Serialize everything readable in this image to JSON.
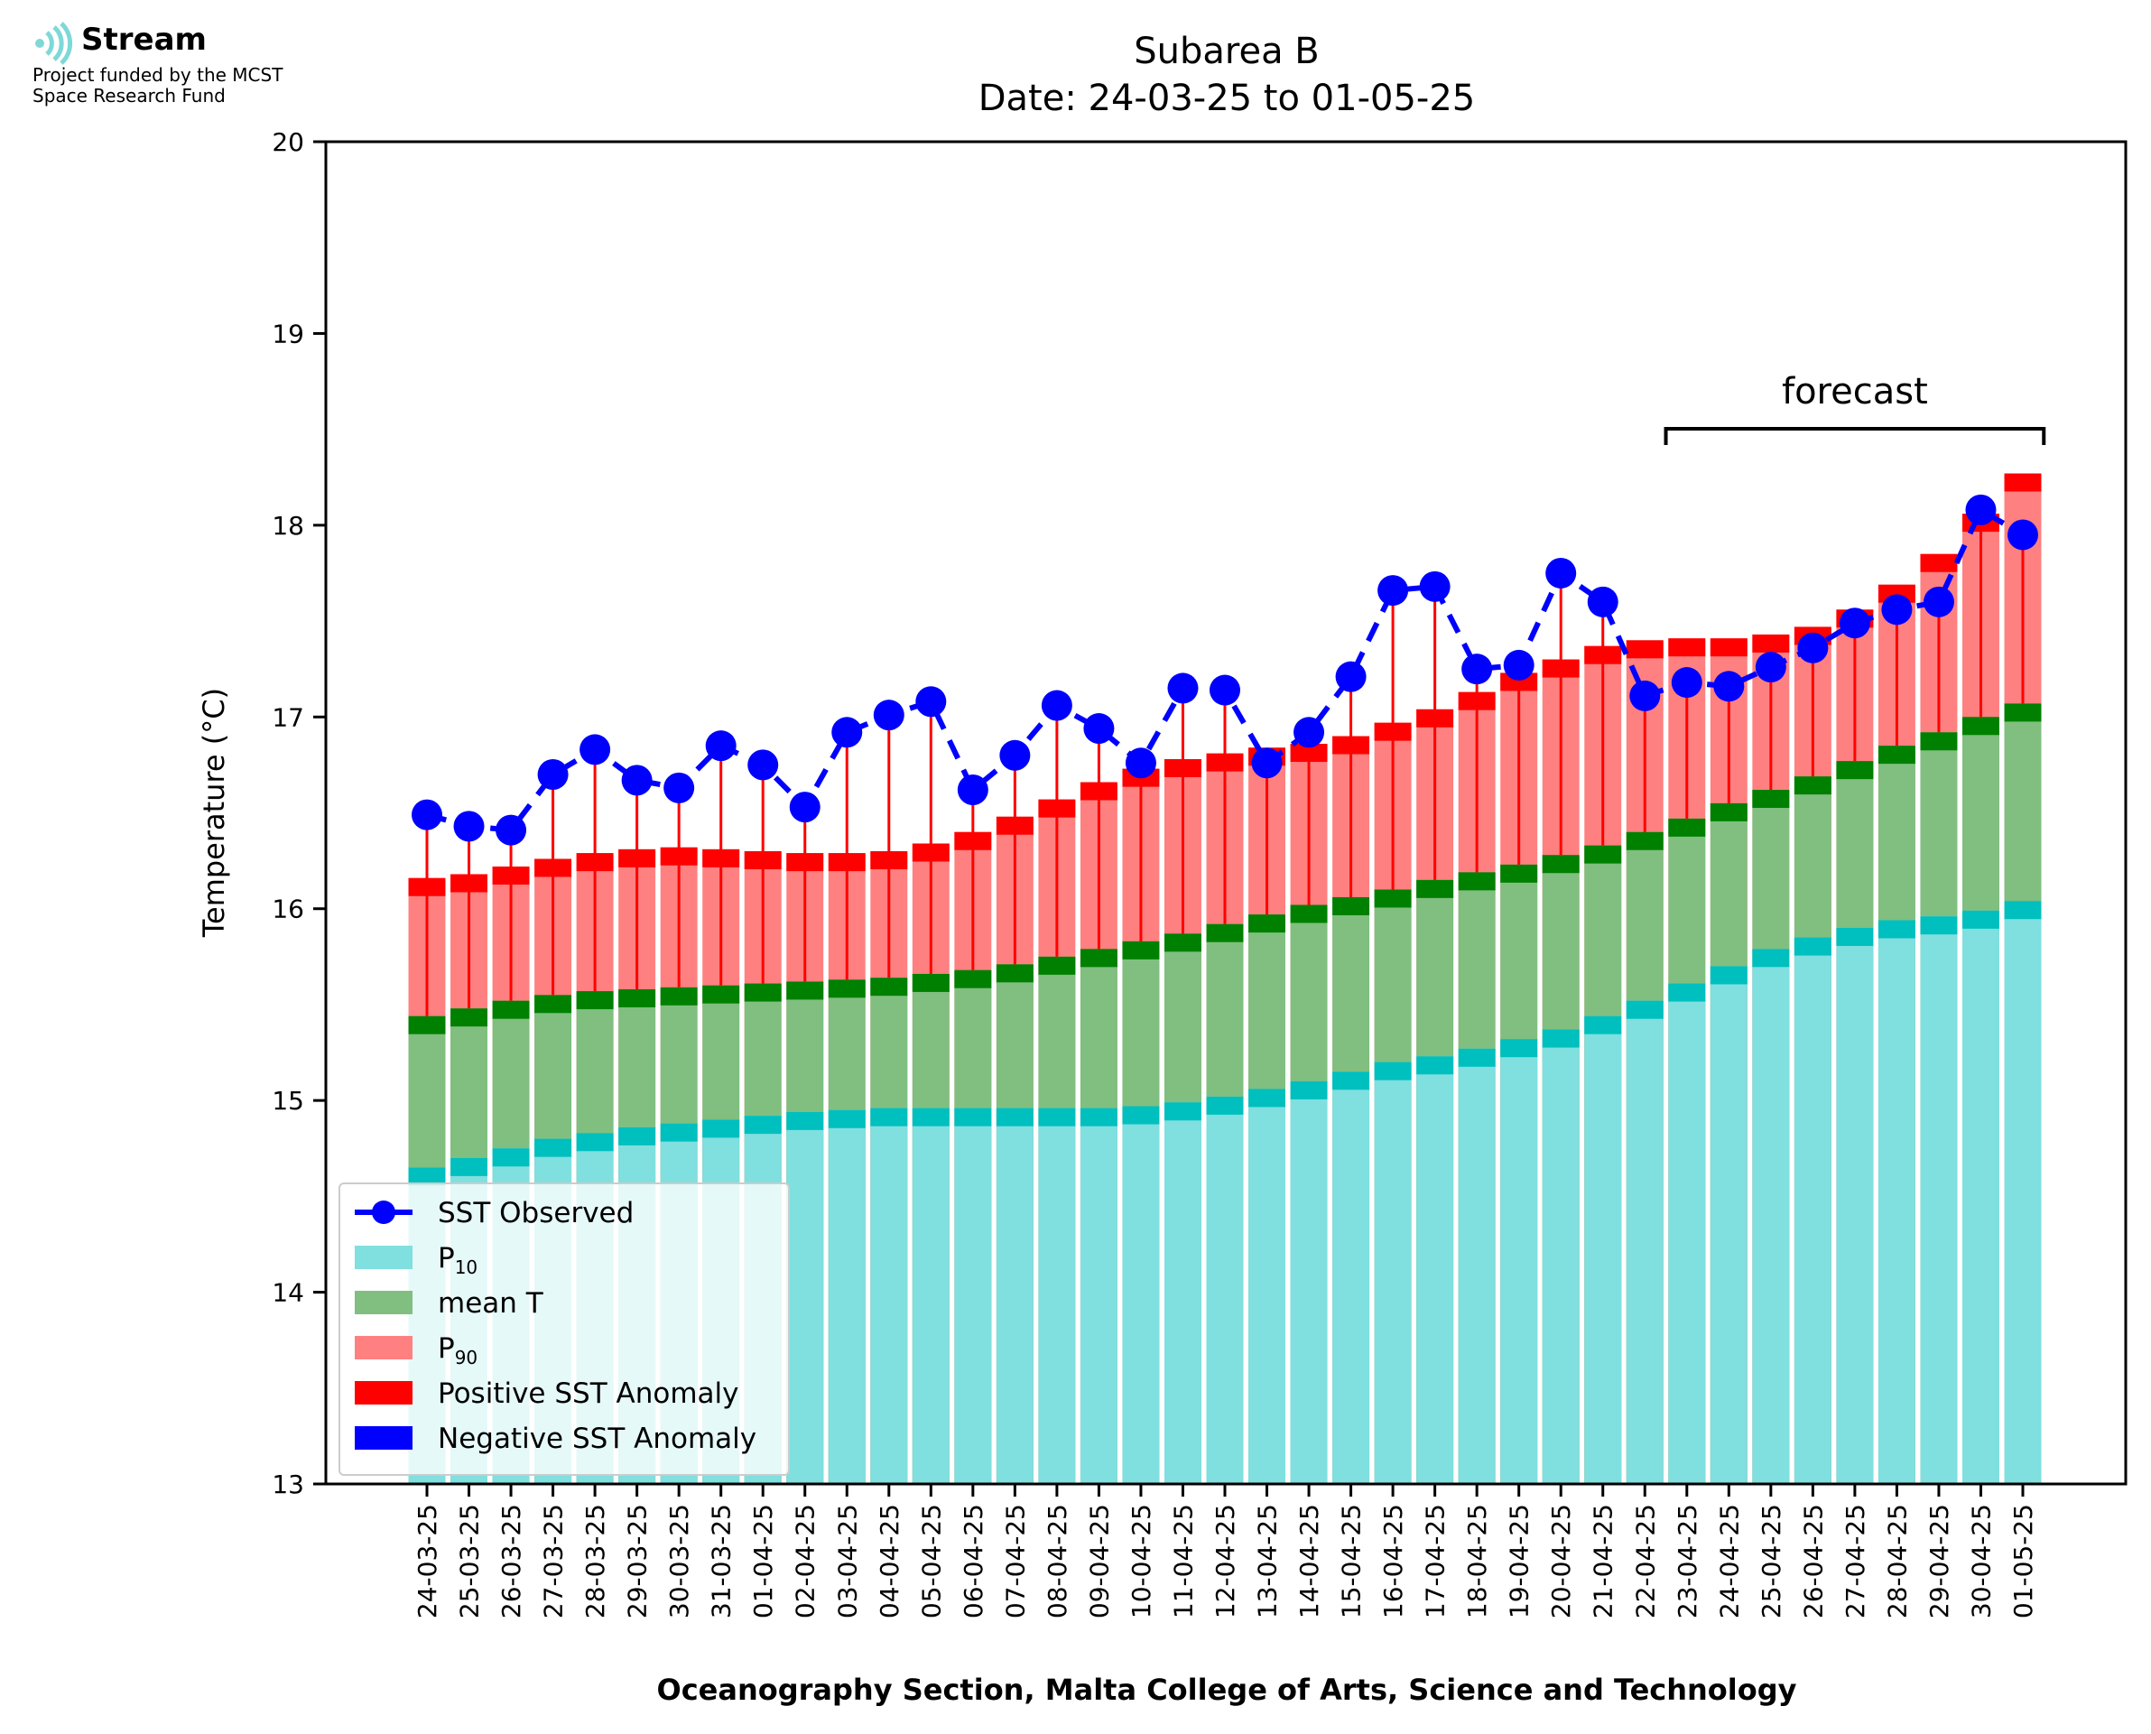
{
  "logo": {
    "name": "Stream",
    "subtitle_line1": "Project funded by the MCST",
    "subtitle_line2": "Space Research Fund",
    "icon": "stream-waves-icon"
  },
  "chart_data": {
    "type": "bar",
    "title": "Subarea B",
    "subtitle": "Date: 24-03-25 to 01-05-25",
    "xlabel": "Oceanography Section, Malta College of Arts, Science and Technology",
    "ylabel": "Temperature (°C)",
    "ylim": [
      13,
      20
    ],
    "yticks": [
      13,
      14,
      15,
      16,
      17,
      18,
      19,
      20
    ],
    "grid": false,
    "legend_position": "bottom-left",
    "annotation": "forecast",
    "forecast_range": [
      "23-04-25",
      "01-05-25"
    ],
    "colors": {
      "p10": "#80dfdf",
      "p10_edge": "#00bfbf",
      "mean": "#80bf80",
      "mean_edge": "#008000",
      "p90": "#ff8080",
      "p90_edge": "#ff0000",
      "positive_anomaly": "#ff0000",
      "negative_anomaly": "#0000ff",
      "observed": "#0000ff"
    },
    "categories": [
      "24-03-25",
      "25-03-25",
      "26-03-25",
      "27-03-25",
      "28-03-25",
      "29-03-25",
      "30-03-25",
      "31-03-25",
      "01-04-25",
      "02-04-25",
      "03-04-25",
      "04-04-25",
      "05-04-25",
      "06-04-25",
      "07-04-25",
      "08-04-25",
      "09-04-25",
      "10-04-25",
      "11-04-25",
      "12-04-25",
      "13-04-25",
      "14-04-25",
      "15-04-25",
      "16-04-25",
      "17-04-25",
      "18-04-25",
      "19-04-25",
      "20-04-25",
      "21-04-25",
      "22-04-25",
      "23-04-25",
      "24-04-25",
      "25-04-25",
      "26-04-25",
      "27-04-25",
      "28-04-25",
      "29-04-25",
      "30-04-25",
      "01-05-25"
    ],
    "series": [
      {
        "name": "P10",
        "values": [
          14.65,
          14.7,
          14.75,
          14.8,
          14.83,
          14.86,
          14.88,
          14.9,
          14.92,
          14.94,
          14.95,
          14.96,
          14.96,
          14.96,
          14.96,
          14.96,
          14.96,
          14.97,
          14.99,
          15.02,
          15.06,
          15.1,
          15.15,
          15.2,
          15.23,
          15.27,
          15.32,
          15.37,
          15.44,
          15.52,
          15.61,
          15.7,
          15.79,
          15.85,
          15.9,
          15.94,
          15.96,
          15.99,
          16.04
        ]
      },
      {
        "name": "mean T",
        "values": [
          15.44,
          15.48,
          15.52,
          15.55,
          15.57,
          15.58,
          15.59,
          15.6,
          15.61,
          15.62,
          15.63,
          15.64,
          15.66,
          15.68,
          15.71,
          15.75,
          15.79,
          15.83,
          15.87,
          15.92,
          15.97,
          16.02,
          16.06,
          16.1,
          16.15,
          16.19,
          16.23,
          16.28,
          16.33,
          16.4,
          16.47,
          16.55,
          16.62,
          16.69,
          16.77,
          16.85,
          16.92,
          17.0,
          17.07
        ]
      },
      {
        "name": "P90",
        "values": [
          16.16,
          16.18,
          16.22,
          16.26,
          16.29,
          16.31,
          16.32,
          16.31,
          16.3,
          16.29,
          16.29,
          16.3,
          16.34,
          16.4,
          16.48,
          16.57,
          16.66,
          16.73,
          16.78,
          16.81,
          16.84,
          16.86,
          16.9,
          16.97,
          17.04,
          17.13,
          17.23,
          17.3,
          17.37,
          17.4,
          17.41,
          17.41,
          17.43,
          17.47,
          17.56,
          17.69,
          17.85,
          18.06,
          18.27
        ]
      },
      {
        "name": "SST Observed",
        "values": [
          16.49,
          16.43,
          16.41,
          16.7,
          16.83,
          16.67,
          16.63,
          16.85,
          16.75,
          16.53,
          16.92,
          17.01,
          17.08,
          16.62,
          16.8,
          17.06,
          16.94,
          16.76,
          17.15,
          17.14,
          16.76,
          16.92,
          17.21,
          17.66,
          17.68,
          17.25,
          17.27,
          17.75,
          17.6,
          17.11,
          17.18,
          17.16,
          17.26,
          17.36,
          17.49,
          17.56,
          17.6,
          18.08,
          17.95
        ]
      }
    ]
  },
  "legend": {
    "observed": "SST Observed",
    "p10_main": "P",
    "p10_sub": "10",
    "mean": "mean T",
    "p90_main": "P",
    "p90_sub": "90",
    "positive": "Positive SST Anomaly",
    "negative": "Negative SST Anomaly"
  }
}
